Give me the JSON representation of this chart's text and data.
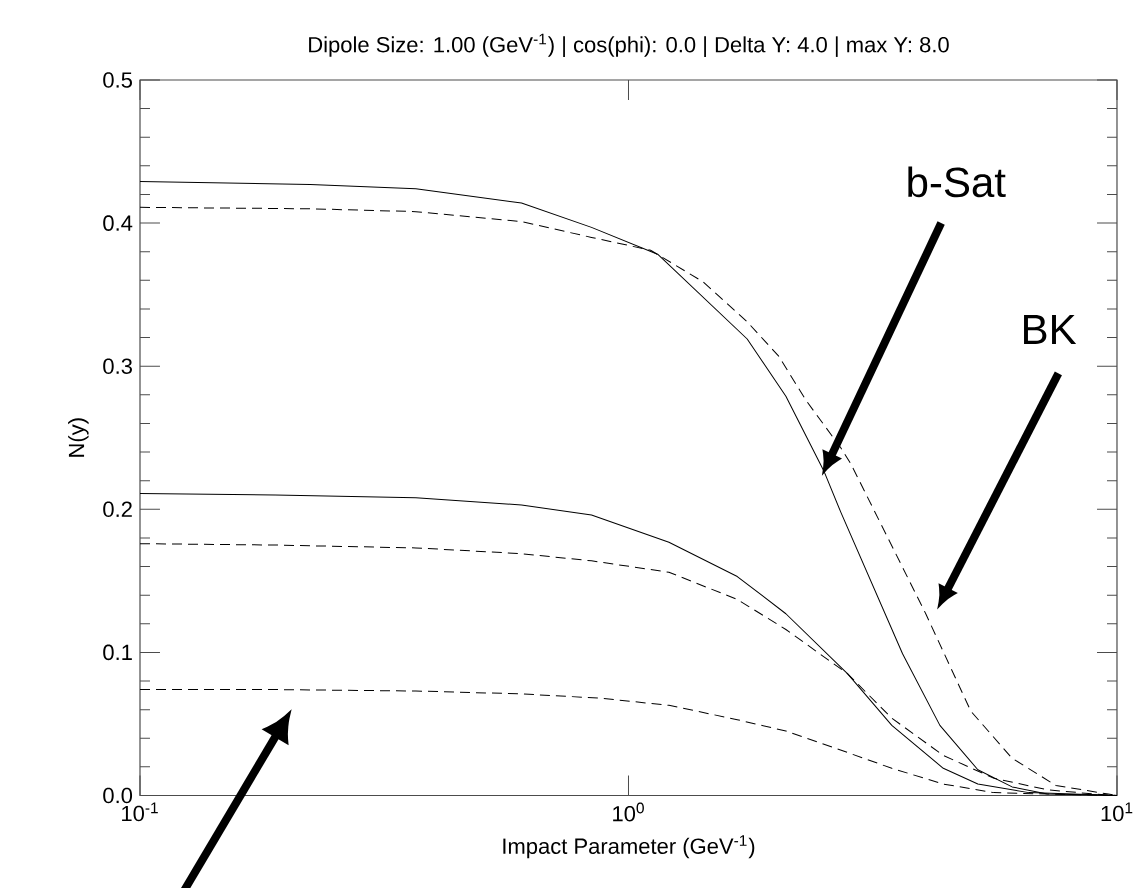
{
  "chart_data": {
    "type": "line",
    "title": "Dipole Size: 1.00 (GeV$^{-1}$) | cos(phi): 0.0 | Delta Y: 4.0 | max Y: 8.0",
    "xlabel": "Impact Parameter (GeV$^{-1}$)",
    "ylabel": "N(y)",
    "log": "x",
    "xlim": [
      0.1,
      10
    ],
    "ylim": [
      0,
      0.5
    ],
    "xticks": [
      {
        "value": 0.1,
        "label": "10$^{-1}$"
      },
      {
        "value": 1,
        "label": "10$^{0}$"
      },
      {
        "value": 10,
        "label": "10$^{1}$"
      }
    ],
    "yticks": [
      {
        "value": 0,
        "label": "0.0"
      },
      {
        "value": 0.1,
        "label": "0.1"
      },
      {
        "value": 0.2,
        "label": "0.2"
      },
      {
        "value": 0.3,
        "label": "0.3"
      },
      {
        "value": 0.4,
        "label": "0.4"
      },
      {
        "value": 0.5,
        "label": "0.5"
      }
    ],
    "series": [
      {
        "color": "#000000",
        "line_style": "solid",
        "x": [
          0.1,
          0.223,
          0.367,
          0.604,
          0.84,
          1.15,
          1.75,
          2.1,
          2.51,
          2.72,
          3.64,
          4.34,
          5.19,
          6.1,
          7.2,
          10
        ],
        "values": [
          0.429,
          0.427,
          0.424,
          0.414,
          0.397,
          0.378,
          0.319,
          0.279,
          0.227,
          0.198,
          0.099,
          0.049,
          0.018,
          0.006,
          0.001,
          0
        ]
      },
      {
        "color": "#000000",
        "line_style": "dashed",
        "x": [
          0.1,
          0.223,
          0.367,
          0.604,
          0.84,
          1.11,
          1.42,
          1.75,
          2.03,
          2.31,
          2.72,
          2.85,
          4.06,
          5.02,
          6.1,
          7.5,
          9.6,
          10
        ],
        "values": [
          0.411,
          0.41,
          0.408,
          0.401,
          0.39,
          0.381,
          0.359,
          0.331,
          0.307,
          0.276,
          0.243,
          0.232,
          0.127,
          0.059,
          0.026,
          0.007,
          0.001,
          0
        ]
      },
      {
        "color": "#000000",
        "line_style": "solid",
        "x": [
          0.1,
          0.189,
          0.367,
          0.604,
          0.84,
          1.21,
          1.67,
          2.1,
          2.81,
          3.46,
          4.41,
          5.19,
          6.6,
          10
        ],
        "values": [
          0.211,
          0.21,
          0.208,
          0.203,
          0.196,
          0.177,
          0.153,
          0.127,
          0.085,
          0.049,
          0.019,
          0.008,
          0.002,
          0
        ]
      },
      {
        "color": "#000000",
        "line_style": "dashed",
        "x": [
          0.1,
          0.189,
          0.367,
          0.604,
          0.84,
          1.21,
          1.67,
          2.1,
          2.81,
          3.46,
          4.41,
          5.6,
          7.2,
          9,
          10
        ],
        "values": [
          0.176,
          0.175,
          0.173,
          0.169,
          0.164,
          0.156,
          0.137,
          0.116,
          0.085,
          0.054,
          0.028,
          0.012,
          0.004,
          0.001,
          0
        ]
      },
      {
        "color": "#000000",
        "line_style": "dashed",
        "x": [
          0.1,
          0.189,
          0.367,
          0.604,
          0.876,
          1.21,
          1.67,
          2.1,
          2.81,
          3.46,
          4.41,
          5.6,
          7.2,
          10
        ],
        "values": [
          0.074,
          0.074,
          0.073,
          0.071,
          0.068,
          0.063,
          0.053,
          0.045,
          0.03,
          0.019,
          0.008,
          0.002,
          0.001,
          0
        ]
      }
    ],
    "annotations": [
      "b-Sat",
      "BK"
    ]
  }
}
